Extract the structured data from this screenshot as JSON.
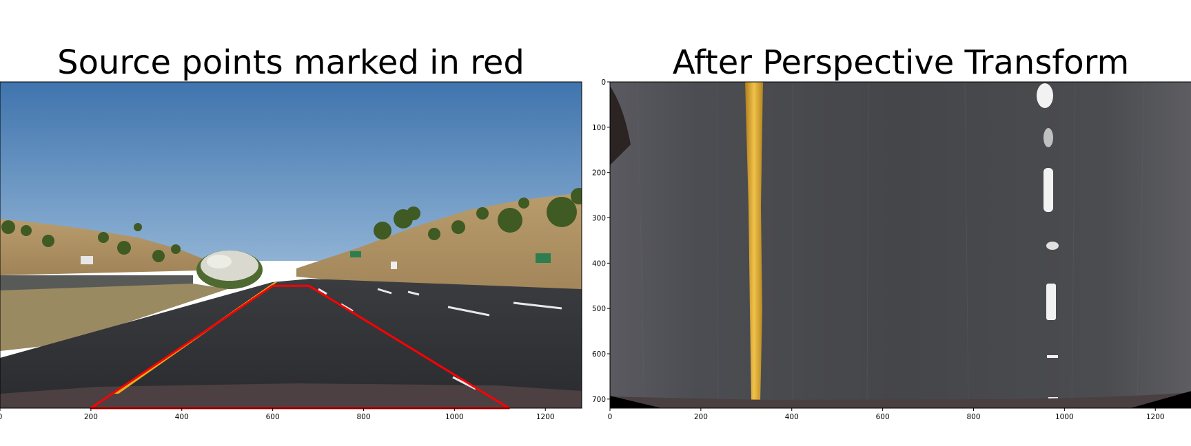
{
  "chart_data": [
    {
      "type": "image",
      "title": "Source points marked in red",
      "x_ticks": [
        0,
        200,
        400,
        600,
        800,
        1000,
        1200
      ],
      "y_ticks": [],
      "xlim": [
        0,
        1280
      ],
      "ylim": [
        720,
        0
      ],
      "source_polygon": [
        [
          200,
          720
        ],
        [
          600,
          450
        ],
        [
          680,
          450
        ],
        [
          1120,
          720
        ]
      ],
      "colors": {
        "polygon": "#ff0000",
        "lane_left": "#e0b020",
        "sky": "#4a7fb5",
        "road": "#2f3136"
      }
    },
    {
      "type": "image",
      "title": "After Perspective Transform",
      "x_ticks": [
        0,
        200,
        400,
        600,
        800,
        1000,
        1200
      ],
      "y_ticks": [
        0,
        100,
        200,
        300,
        400,
        500,
        600,
        700
      ],
      "xlim": [
        0,
        1280
      ],
      "ylim": [
        720,
        0
      ],
      "colors": {
        "lane_left": "#e3b53a",
        "lane_right": "#ffffff",
        "road": "#47484d"
      }
    }
  ]
}
